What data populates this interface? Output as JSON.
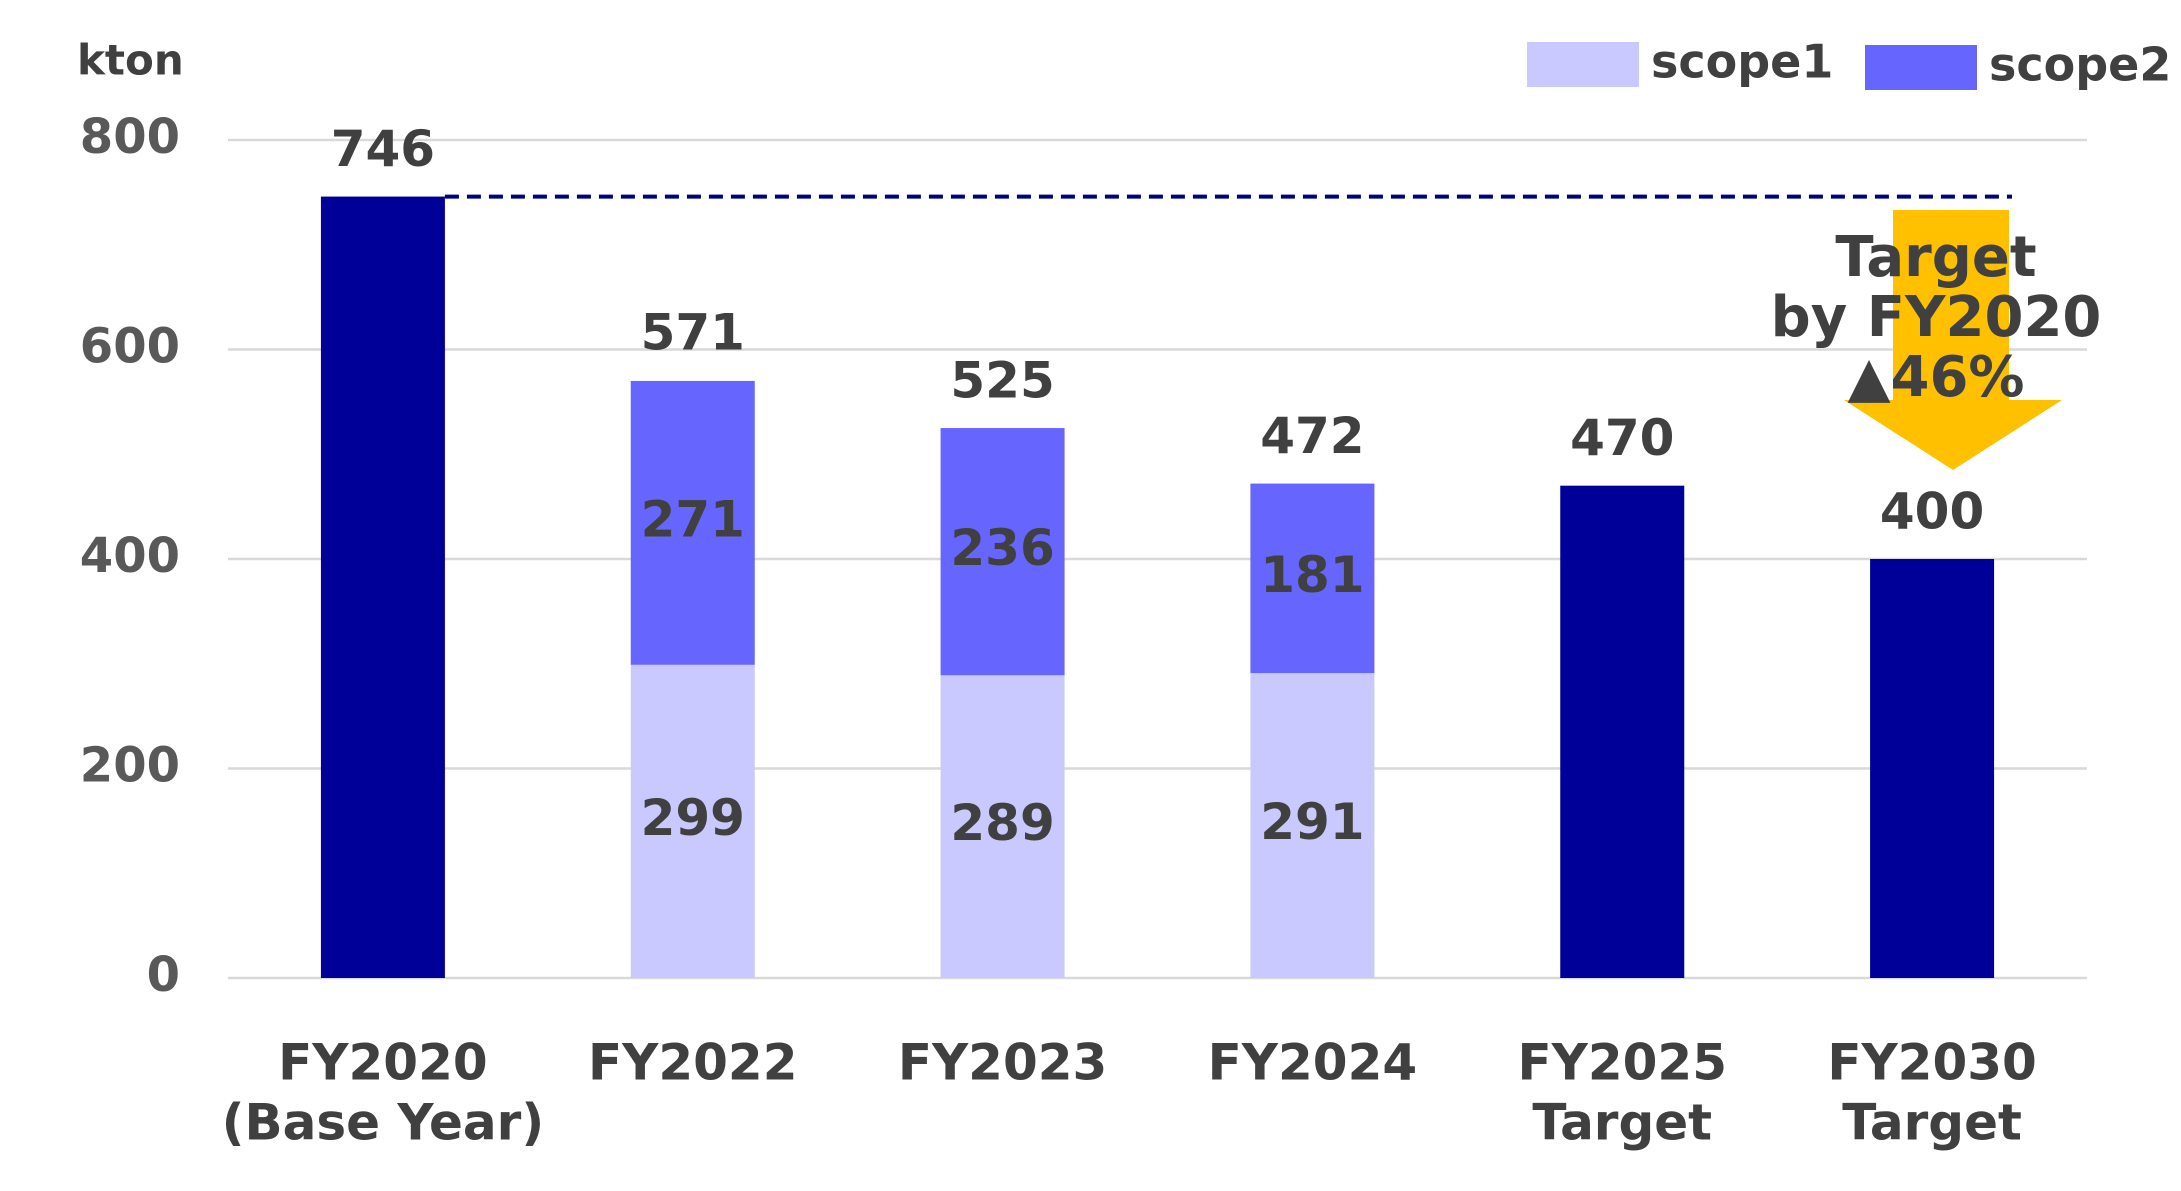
{
  "chart_data": {
    "type": "stacked-bar",
    "y_label": "kton",
    "categories": [
      [
        "FY2020",
        "(Base Year)"
      ],
      [
        "FY2022"
      ],
      [
        "FY2023"
      ],
      [
        "FY2024"
      ],
      [
        "FY2025",
        "Target"
      ],
      [
        "FY2030",
        "Target"
      ]
    ],
    "series": [
      {
        "name": "scope1",
        "color": "#c9c9ff",
        "values": [
          null,
          299,
          289,
          291,
          null,
          null
        ]
      },
      {
        "name": "scope2",
        "color": "#6666ff",
        "values": [
          null,
          271,
          236,
          181,
          null,
          null
        ]
      }
    ],
    "totals": {
      "color": "#000099",
      "values": [
        746,
        571,
        525,
        472,
        470,
        400
      ]
    },
    "baseline_color": "#000080",
    "annotation": [
      "Target",
      "by FY2020",
      "▲46%"
    ],
    "ylim": [
      0,
      800
    ],
    "yticks": [
      0,
      200,
      400,
      600,
      800
    ],
    "grid": true,
    "legend": "top-right"
  }
}
